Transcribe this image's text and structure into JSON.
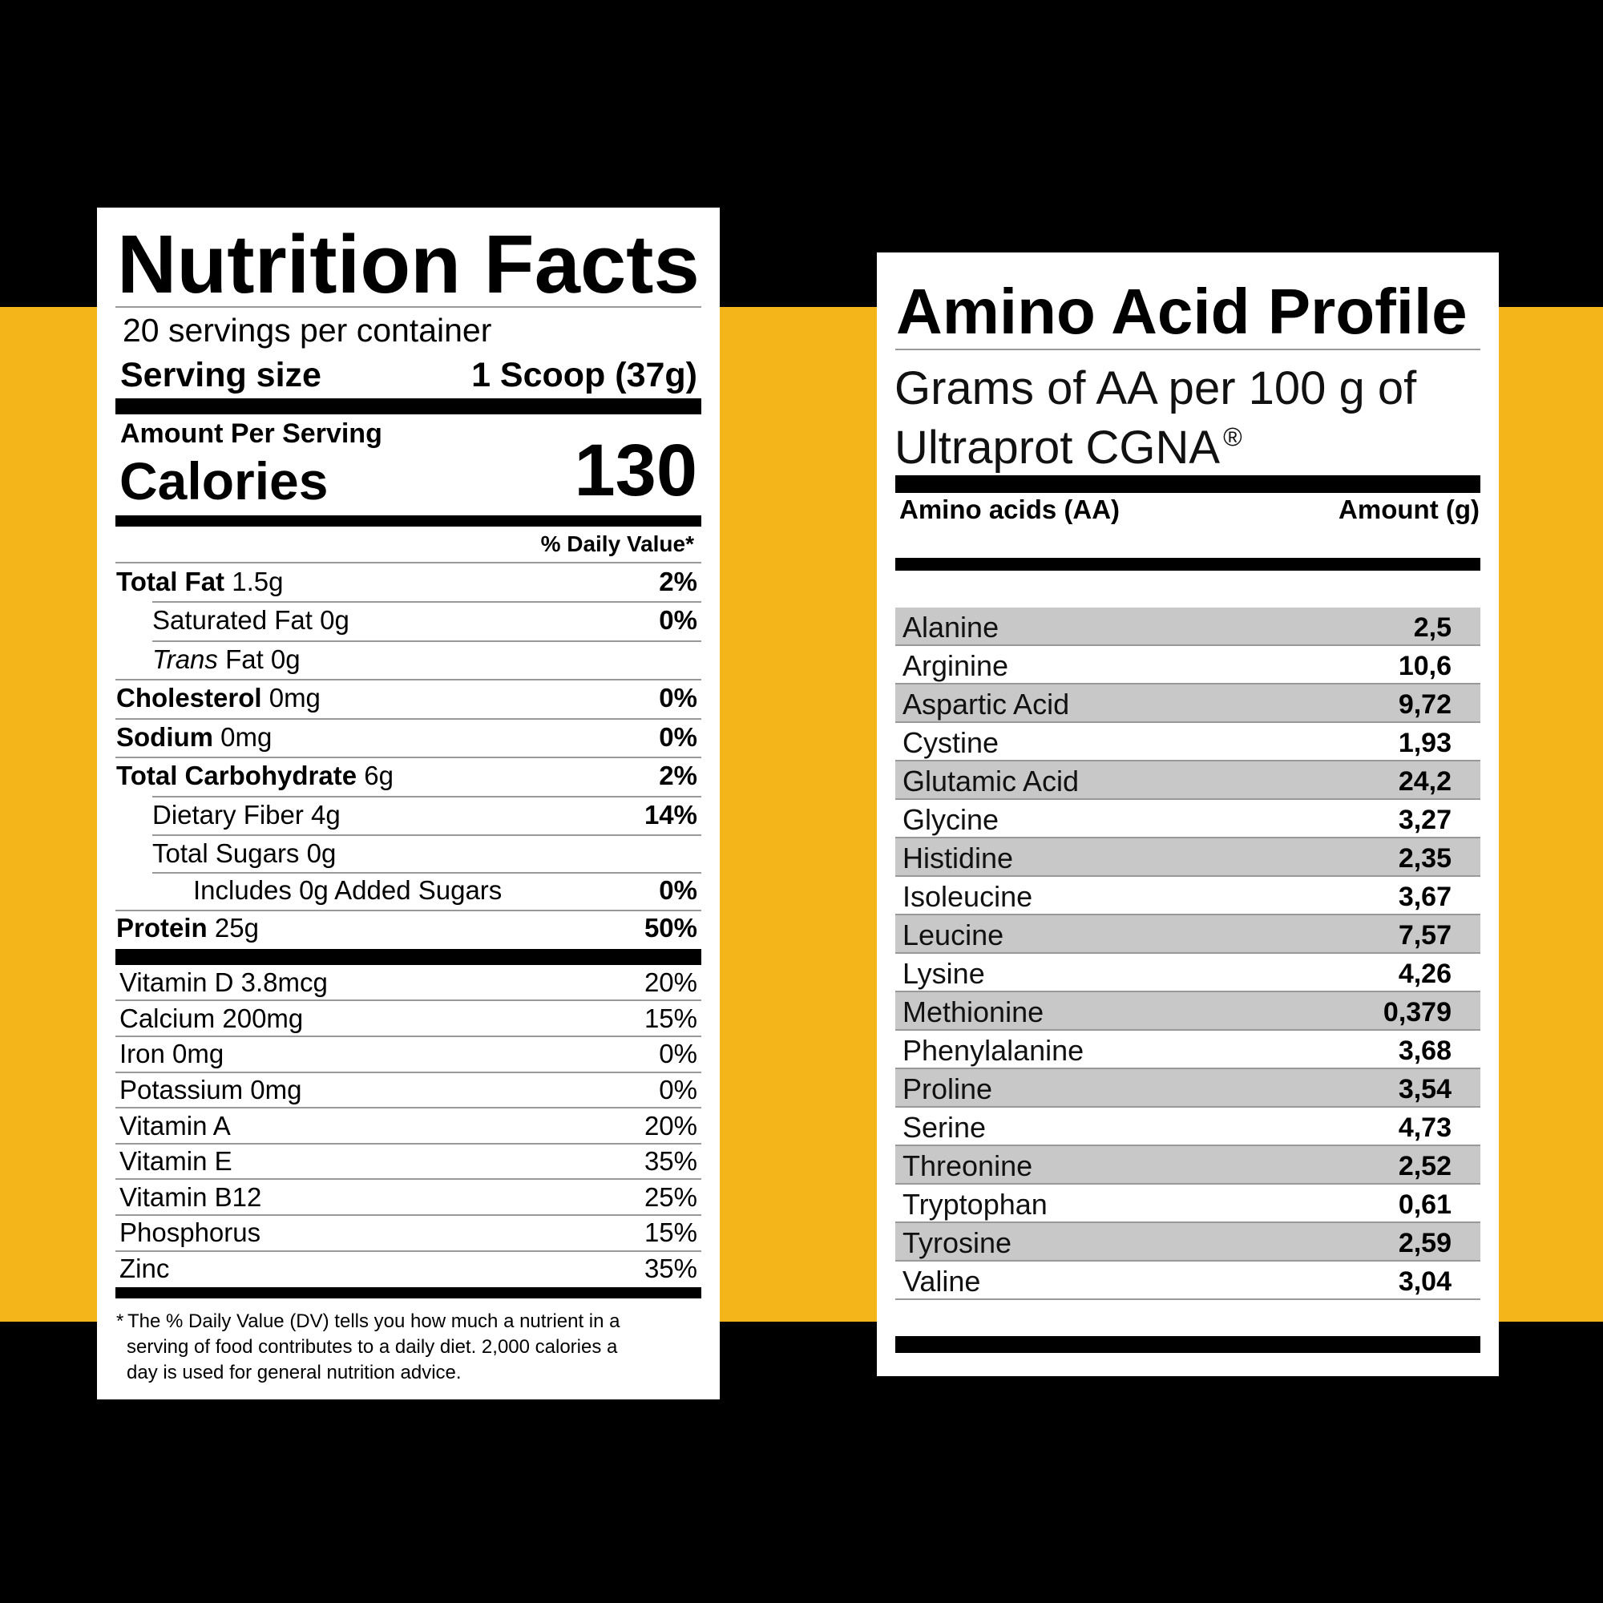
{
  "nutrition_facts": {
    "title": "Nutrition Facts",
    "servings": "20 servings per container",
    "serving_size_label": "Serving size",
    "serving_size_value": "1 Scoop (37g)",
    "amount_per_serving": "Amount Per Serving",
    "calories_label": "Calories",
    "calories_value": "130",
    "daily_value_header": "% Daily Value*",
    "nutrients": [
      {
        "name": "Total Fat",
        "amount": "1.5g",
        "dv": "2%"
      },
      {
        "amount": "Saturated Fat 0g",
        "dv": "0%"
      },
      {
        "prefix": "Trans",
        "amount": "Fat 0g"
      },
      {
        "name": "Cholesterol",
        "amount": "0mg",
        "dv": "0%"
      },
      {
        "name": "Sodium",
        "amount": "0mg",
        "dv": "0%"
      },
      {
        "name": "Total Carbohydrate",
        "amount": "6g",
        "dv": "2%"
      },
      {
        "amount": "Dietary Fiber 4g",
        "dv": "14%"
      },
      {
        "amount": "Total Sugars 0g"
      },
      {
        "amount": "Includes 0g Added Sugars",
        "dv": "0%"
      },
      {
        "name": "Protein",
        "amount": "25g",
        "dv": "50%"
      }
    ],
    "vitamins": [
      {
        "name": "Vitamin D 3.8mcg",
        "dv": "20%"
      },
      {
        "name": "Calcium 200mg",
        "dv": "15%"
      },
      {
        "name": "Iron 0mg",
        "dv": "0%"
      },
      {
        "name": "Potassium 0mg",
        "dv": "0%"
      },
      {
        "name": "Vitamin A",
        "dv": "20%"
      },
      {
        "name": "Vitamin E",
        "dv": "35%"
      },
      {
        "name": "Vitamin B12",
        "dv": "25%"
      },
      {
        "name": "Phosphorus",
        "dv": "15%"
      },
      {
        "name": "Zinc",
        "dv": "35%"
      }
    ],
    "footnote_mark": "*",
    "footnote_lines": [
      "The % Daily Value (DV) tells you how much a nutrient in a",
      "serving of food contributes to a daily diet. 2,000 calories a",
      "day is used for general nutrition advice."
    ]
  },
  "amino_profile": {
    "title": "Amino Acid Profile",
    "subtitle_lines": [
      "Grams of AA per 100 g of",
      "Ultraprot CGNA"
    ],
    "registered": "®",
    "header_name": "Amino acids (AA)",
    "header_amount": "Amount (g)",
    "rows": [
      {
        "name": "Alanine",
        "amount": "2,5"
      },
      {
        "name": "Arginine",
        "amount": "10,6"
      },
      {
        "name": "Aspartic Acid",
        "amount": "9,72"
      },
      {
        "name": "Cystine",
        "amount": "1,93"
      },
      {
        "name": "Glutamic Acid",
        "amount": "24,2"
      },
      {
        "name": "Glycine",
        "amount": "3,27"
      },
      {
        "name": "Histidine",
        "amount": "2,35"
      },
      {
        "name": "Isoleucine",
        "amount": "3,67"
      },
      {
        "name": "Leucine",
        "amount": "7,57"
      },
      {
        "name": "Lysine",
        "amount": "4,26"
      },
      {
        "name": "Methionine",
        "amount": "0,379"
      },
      {
        "name": "Phenylalanine",
        "amount": "3,68"
      },
      {
        "name": "Proline",
        "amount": "3,54"
      },
      {
        "name": "Serine",
        "amount": "4,73"
      },
      {
        "name": "Threonine",
        "amount": "2,52"
      },
      {
        "name": "Tryptophan",
        "amount": "0,61"
      },
      {
        "name": "Tyrosine",
        "amount": "2,59"
      },
      {
        "name": "Valine",
        "amount": "3,04"
      }
    ]
  }
}
